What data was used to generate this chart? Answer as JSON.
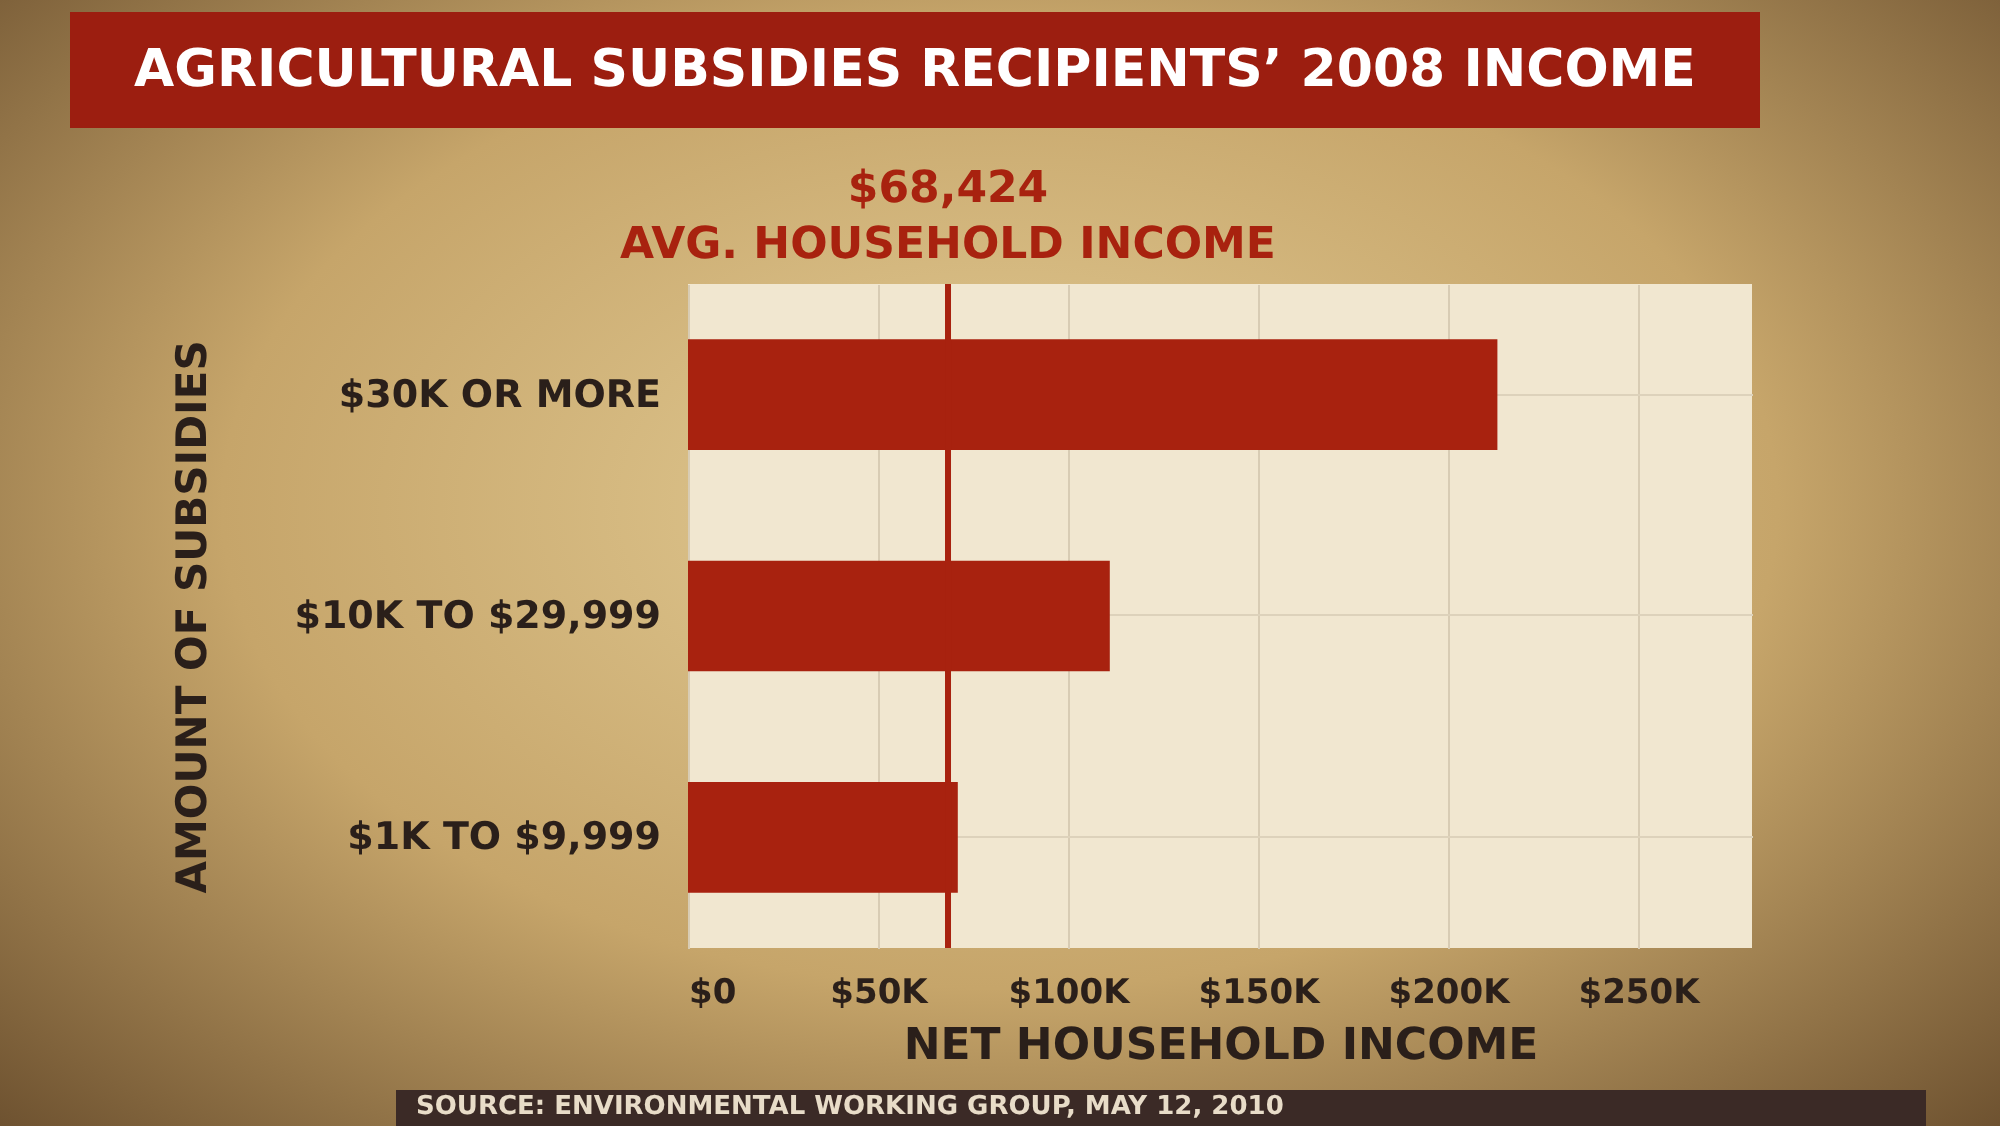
{
  "chart_data": {
    "type": "bar",
    "orientation": "horizontal",
    "title": "AGRICULTURAL SUBSIDIES RECIPIENTS’ 2008 INCOME",
    "xlabel": "NET HOUSEHOLD INCOME",
    "ylabel": "AMOUNT OF SUBSIDIES",
    "categories": [
      "$30K OR MORE",
      "$10K TO $29,999",
      "$1K TO $9,999"
    ],
    "values": [
      213000,
      111000,
      71000
    ],
    "color": "#a8220f",
    "xlim": [
      0,
      280000
    ],
    "xticks": [
      {
        "value": 0,
        "label": "$0"
      },
      {
        "value": 50000,
        "label": "$50K"
      },
      {
        "value": 100000,
        "label": "$100K"
      },
      {
        "value": 150000,
        "label": "$150K"
      },
      {
        "value": 200000,
        "label": "$200K"
      },
      {
        "value": 250000,
        "label": "$250K"
      }
    ],
    "ref_lines": [
      {
        "axis": "x",
        "value": 68424,
        "label": "AVG. HOUSEHOLD INCOME",
        "color": "#a8220f"
      }
    ],
    "grid": true,
    "annotations": [
      "$68,424",
      "SOURCE: ENVIRONMENTAL WORKING GROUP, MAY 12, 2010"
    ]
  }
}
